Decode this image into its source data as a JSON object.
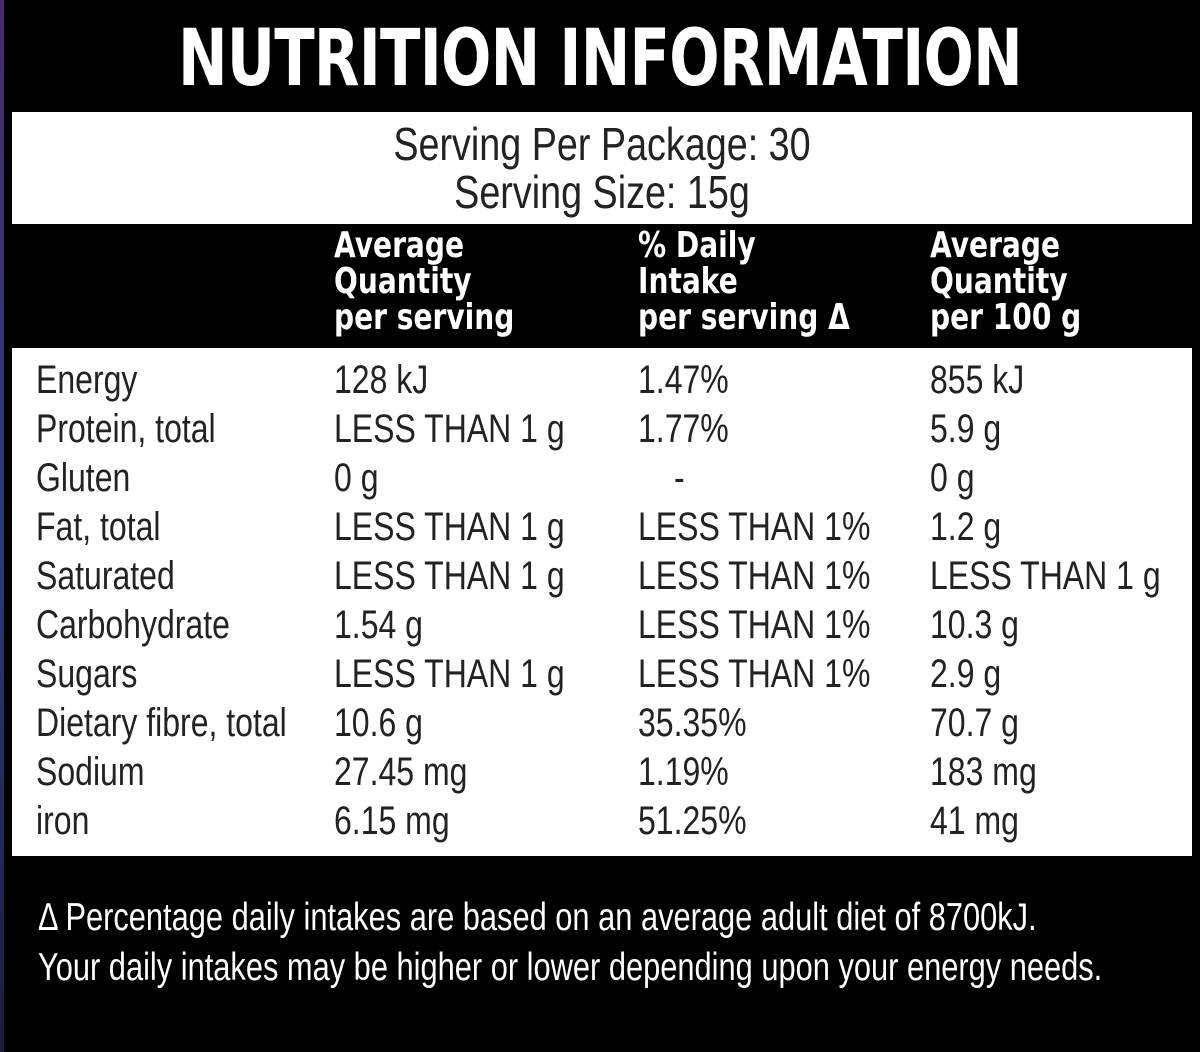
{
  "title": "NUTRITION INFORMATION",
  "serving": {
    "per_package": "Serving Per Package: 30",
    "size": "Serving Size: 15g"
  },
  "headers": {
    "col1": [
      "Average",
      "Quantity",
      "per serving"
    ],
    "col2": [
      "% Daily",
      "Intake",
      "per serving Δ"
    ],
    "col3": [
      "Average",
      "Quantity",
      "per 100 g"
    ]
  },
  "rows": [
    {
      "nutrient": "Energy",
      "per_serving": "128 kJ",
      "daily_intake": "1.47%",
      "per_100g": "855 kJ"
    },
    {
      "nutrient": "Protein, total",
      "per_serving": "LESS THAN 1 g",
      "daily_intake": "1.77%",
      "per_100g": "5.9 g"
    },
    {
      "nutrient": "Gluten",
      "per_serving": "0 g",
      "daily_intake": "-",
      "per_100g": "0 g"
    },
    {
      "nutrient": "Fat, total",
      "per_serving": "LESS THAN 1 g",
      "daily_intake": "LESS THAN 1%",
      "per_100g": "1.2 g"
    },
    {
      "nutrient": "Saturated",
      "per_serving": "LESS THAN 1 g",
      "daily_intake": "LESS THAN 1%",
      "per_100g": "LESS THAN 1 g"
    },
    {
      "nutrient": "Carbohydrate",
      "per_serving": "1.54 g",
      "daily_intake": "LESS THAN 1%",
      "per_100g": "10.3 g"
    },
    {
      "nutrient": "Sugars",
      "per_serving": "LESS THAN 1 g",
      "daily_intake": "LESS THAN 1%",
      "per_100g": "2.9 g"
    },
    {
      "nutrient": "Dietary fibre, total",
      "per_serving": "10.6 g",
      "daily_intake": "35.35%",
      "per_100g": "70.7 g"
    },
    {
      "nutrient": "Sodium",
      "per_serving": "27.45 mg",
      "daily_intake": "1.19%",
      "per_100g": "183 mg"
    },
    {
      "nutrient": "iron",
      "per_serving": "6.15 mg",
      "daily_intake": "51.25%",
      "per_100g": "41 mg"
    }
  ],
  "footnote": [
    "Δ Percentage daily intakes are based on an average adult diet of 8700kJ.",
    "Your daily intakes may be higher or lower depending upon your energy needs."
  ]
}
